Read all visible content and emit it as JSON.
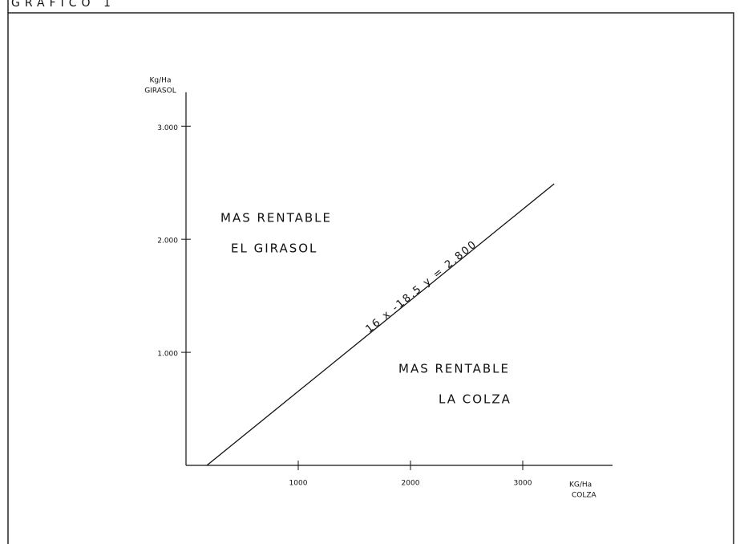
{
  "chart_data": {
    "type": "line",
    "title": "GRAFICO 1",
    "x_label": [
      "KG/Ha",
      "COLZA"
    ],
    "y_label": [
      "Kg/Ha",
      "GIRASOL"
    ],
    "x": [
      186,
      3280
    ],
    "series": [
      {
        "name": "16 x -18.5 y = 2.800",
        "color": "#111111",
        "values": [
          0,
          2490
        ]
      }
    ],
    "xlim": [
      0,
      3800
    ],
    "ylim": [
      0,
      3300
    ],
    "xticks": [
      1000,
      2000,
      3000
    ],
    "yticks": [
      {
        "value": 1000,
        "label": "1.000"
      },
      {
        "value": 2000,
        "label": "2.000"
      },
      {
        "value": 3000,
        "label": "3.000"
      }
    ],
    "annotations": [
      [
        "MAS RENTABLE",
        "EL GIRASOL"
      ],
      [
        "MAS RENTABLE",
        "LA COLZA"
      ]
    ]
  }
}
